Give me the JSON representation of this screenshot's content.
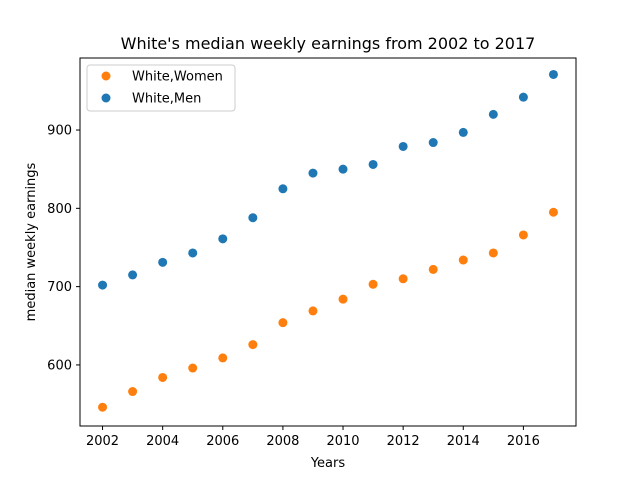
{
  "chart_data": {
    "type": "scatter",
    "title": "White's median weekly earnings from 2002 to 2017",
    "xlabel": "Years",
    "ylabel": "median weekly earnings",
    "xlim": [
      2001.25,
      2017.75
    ],
    "ylim": [
      522,
      992
    ],
    "x_ticks": [
      "2002",
      "2004",
      "2006",
      "2008",
      "2010",
      "2012",
      "2014",
      "2016"
    ],
    "y_ticks": [
      "600",
      "700",
      "800",
      "900"
    ],
    "grid": false,
    "legend_position": "top-left",
    "x": [
      2002,
      2003,
      2004,
      2005,
      2006,
      2007,
      2008,
      2009,
      2010,
      2011,
      2012,
      2013,
      2014,
      2015,
      2016,
      2017
    ],
    "series": [
      {
        "name": "White,Women",
        "color": "#ff7f0e",
        "values": [
          546,
          566,
          584,
          596,
          609,
          626,
          654,
          669,
          684,
          703,
          710,
          722,
          734,
          743,
          766,
          795
        ]
      },
      {
        "name": "White,Men",
        "color": "#1f77b4",
        "values": [
          702,
          715,
          731,
          743,
          761,
          788,
          825,
          845,
          850,
          856,
          879,
          884,
          897,
          920,
          942,
          971
        ]
      }
    ]
  }
}
